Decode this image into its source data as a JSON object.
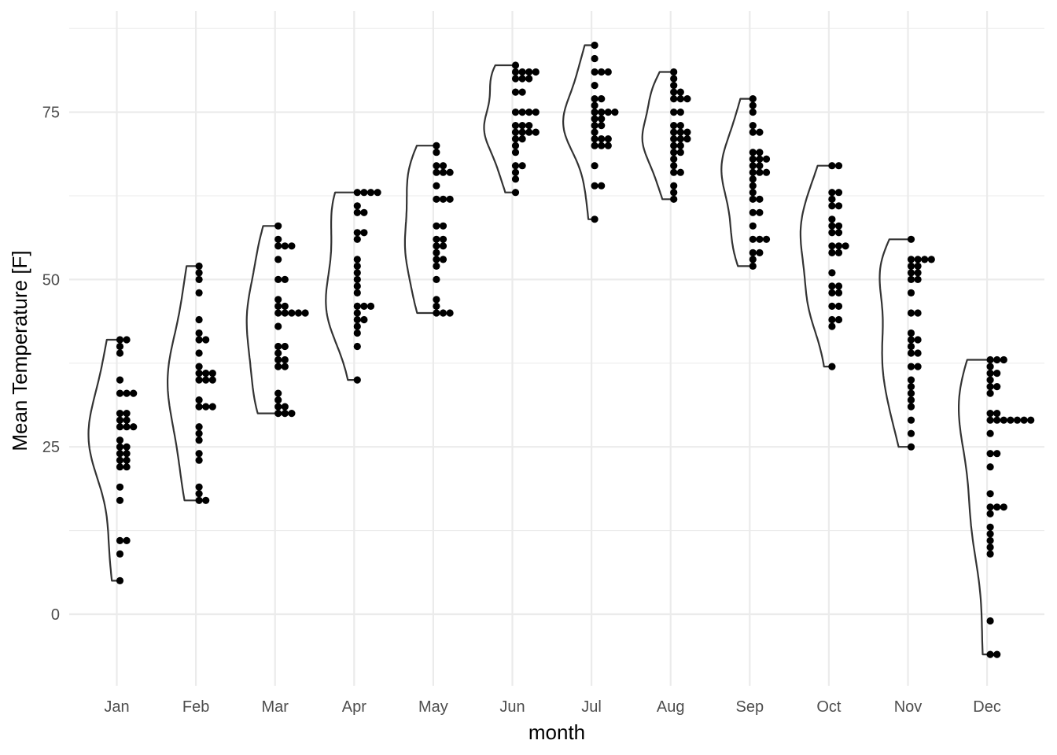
{
  "chart_data": {
    "type": "violin-dotplot",
    "title": "",
    "xlabel": "month",
    "ylabel": "Mean Temperature [F]",
    "categories": [
      "Jan",
      "Feb",
      "Mar",
      "Apr",
      "May",
      "Jun",
      "Jul",
      "Aug",
      "Sep",
      "Oct",
      "Nov",
      "Dec"
    ],
    "ylim": [
      -10,
      88
    ],
    "yticks": [
      0,
      25,
      50,
      75
    ],
    "grid": true,
    "legend": "none",
    "colors": {
      "points": "#000000",
      "violin": "#333333",
      "grid": "#ebebeb"
    },
    "series": [
      {
        "month": "Jan",
        "values": [
          41,
          41,
          40,
          39,
          35,
          33,
          33,
          33,
          30,
          30,
          29,
          29,
          28,
          28,
          28,
          26,
          25,
          25,
          24,
          24,
          23,
          23,
          22,
          22,
          19,
          17,
          11,
          11,
          9,
          5
        ]
      },
      {
        "month": "Feb",
        "values": [
          52,
          51,
          50,
          48,
          44,
          42,
          41,
          41,
          39,
          37,
          36,
          36,
          36,
          35,
          35,
          35,
          32,
          31,
          31,
          31,
          28,
          27,
          26,
          24,
          23,
          19,
          18,
          17,
          17
        ]
      },
      {
        "month": "Mar",
        "values": [
          58,
          56,
          55,
          55,
          55,
          53,
          50,
          50,
          47,
          46,
          46,
          45,
          45,
          45,
          45,
          45,
          43,
          40,
          40,
          39,
          38,
          38,
          37,
          37,
          33,
          32,
          31,
          31,
          30,
          30,
          30
        ]
      },
      {
        "month": "Apr",
        "values": [
          63,
          63,
          63,
          63,
          61,
          60,
          60,
          57,
          57,
          56,
          53,
          52,
          51,
          50,
          49,
          48,
          46,
          46,
          46,
          45,
          44,
          44,
          43,
          42,
          40,
          35
        ]
      },
      {
        "month": "May",
        "values": [
          70,
          69,
          67,
          67,
          66,
          66,
          66,
          64,
          62,
          62,
          62,
          58,
          58,
          56,
          56,
          55,
          55,
          54,
          53,
          53,
          52,
          50,
          47,
          46,
          45,
          45,
          45
        ]
      },
      {
        "month": "Jun",
        "values": [
          82,
          81,
          81,
          81,
          81,
          80,
          80,
          80,
          78,
          78,
          75,
          75,
          75,
          75,
          73,
          73,
          73,
          72,
          72,
          72,
          72,
          71,
          71,
          70,
          69,
          67,
          67,
          66,
          65,
          63
        ]
      },
      {
        "month": "Jul",
        "values": [
          85,
          83,
          81,
          81,
          81,
          79,
          77,
          77,
          76,
          75,
          75,
          75,
          75,
          74,
          74,
          73,
          73,
          72,
          71,
          71,
          71,
          70,
          70,
          70,
          67,
          64,
          64,
          59
        ]
      },
      {
        "month": "Aug",
        "values": [
          81,
          80,
          79,
          78,
          78,
          77,
          77,
          77,
          75,
          75,
          73,
          73,
          72,
          72,
          72,
          71,
          71,
          71,
          70,
          70,
          69,
          69,
          68,
          67,
          66,
          66,
          64,
          63,
          62
        ]
      },
      {
        "month": "Sep",
        "values": [
          77,
          76,
          75,
          73,
          72,
          72,
          69,
          69,
          68,
          68,
          68,
          67,
          67,
          66,
          66,
          66,
          65,
          64,
          63,
          62,
          62,
          60,
          60,
          58,
          56,
          56,
          56,
          54,
          54,
          53,
          52
        ]
      },
      {
        "month": "Oct",
        "values": [
          67,
          67,
          63,
          63,
          62,
          61,
          61,
          59,
          58,
          58,
          57,
          57,
          55,
          55,
          55,
          54,
          54,
          51,
          49,
          49,
          48,
          48,
          46,
          46,
          44,
          44,
          43,
          37
        ]
      },
      {
        "month": "Nov",
        "values": [
          56,
          53,
          53,
          53,
          53,
          52,
          52,
          51,
          51,
          50,
          50,
          48,
          45,
          45,
          42,
          41,
          41,
          40,
          39,
          39,
          37,
          37,
          35,
          34,
          33,
          32,
          31,
          29,
          27,
          25
        ]
      },
      {
        "month": "Dec",
        "values": [
          38,
          38,
          38,
          37,
          36,
          36,
          35,
          34,
          34,
          33,
          30,
          30,
          29,
          29,
          29,
          29,
          29,
          29,
          29,
          27,
          24,
          24,
          22,
          18,
          16,
          16,
          16,
          15,
          13,
          12,
          11,
          10,
          9,
          -1,
          -6,
          -6
        ]
      }
    ]
  }
}
